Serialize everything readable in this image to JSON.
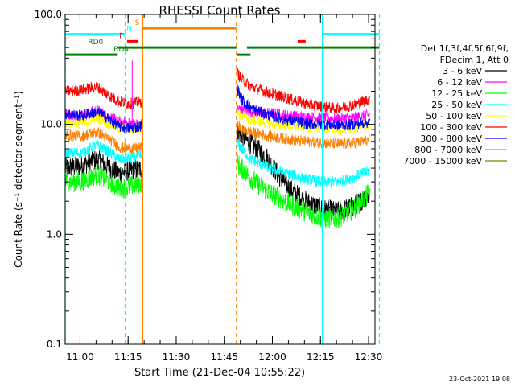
{
  "chart_data": {
    "type": "line",
    "title": "RHESSI Count Rates",
    "xlabel": "Start Time (21-Dec-04 10:55:22)",
    "ylabel": "Count Rate (s⁻¹ detector segment⁻¹)",
    "yscale": "log",
    "ylim": [
      0.1,
      100
    ],
    "xlim": [
      "10:55:22",
      "12:32:00"
    ],
    "x_ticks": [
      "11:00",
      "11:15",
      "11:30",
      "11:45",
      "12:00",
      "12:15",
      "12:30"
    ],
    "y_ticks": [
      "0.1",
      "1.0",
      "10.0",
      "100.0"
    ],
    "x_tick_minutes": [
      4.63,
      19.63,
      34.63,
      49.63,
      64.63,
      79.63,
      94.63
    ],
    "y_tick_values": [
      0.1,
      1,
      10,
      100
    ],
    "legend_header": [
      "Det 1f,3f,4f,5f,6f,9f,",
      "FDecim 1, Att 0"
    ],
    "legend_position": "right",
    "gaps_minutes": [
      [
        24.1,
        53.5
      ]
    ],
    "series": [
      {
        "name": "3 - 6 keV",
        "color": "#000000",
        "points": [
          [
            0,
            4.0
          ],
          [
            5,
            4.2
          ],
          [
            10,
            4.8
          ],
          [
            14,
            4.0
          ],
          [
            17,
            3.6
          ],
          [
            20,
            3.8
          ],
          [
            23,
            3.9
          ],
          [
            53.5,
            8.5
          ],
          [
            55,
            8.0
          ],
          [
            57,
            7.0
          ],
          [
            60,
            6.0
          ],
          [
            63,
            5.0
          ],
          [
            66,
            3.6
          ],
          [
            70,
            2.6
          ],
          [
            75,
            2.0
          ],
          [
            80,
            1.7
          ],
          [
            85,
            1.6
          ],
          [
            90,
            1.8
          ],
          [
            95,
            2.3
          ]
        ]
      },
      {
        "name": "6 - 12 keV",
        "color": "#ff00ff",
        "points": [
          [
            0,
            12.5
          ],
          [
            5,
            12.0
          ],
          [
            10,
            13.5
          ],
          [
            14,
            11.5
          ],
          [
            17,
            10.5
          ],
          [
            20,
            10.2
          ],
          [
            23,
            10.0
          ],
          [
            53.5,
            14.0
          ],
          [
            55,
            13.5
          ],
          [
            58,
            13.0
          ],
          [
            62,
            12.8
          ],
          [
            66,
            12.5
          ],
          [
            70,
            12.0
          ],
          [
            75,
            11.7
          ],
          [
            80,
            11.5
          ],
          [
            85,
            11.2
          ],
          [
            90,
            11.5
          ],
          [
            95,
            12.2
          ]
        ]
      },
      {
        "name": "12 - 25 keV",
        "color": "#00ff00",
        "points": [
          [
            0,
            3.0
          ],
          [
            5,
            3.0
          ],
          [
            10,
            3.5
          ],
          [
            14,
            3.0
          ],
          [
            17,
            2.6
          ],
          [
            20,
            2.7
          ],
          [
            23,
            2.9
          ],
          [
            53.5,
            4.5
          ],
          [
            55,
            4.0
          ],
          [
            58,
            3.2
          ],
          [
            62,
            2.6
          ],
          [
            66,
            2.2
          ],
          [
            70,
            1.9
          ],
          [
            75,
            1.6
          ],
          [
            80,
            1.4
          ],
          [
            85,
            1.4
          ],
          [
            90,
            1.7
          ],
          [
            95,
            2.4
          ]
        ]
      },
      {
        "name": "25 - 50 keV",
        "color": "#00ffff",
        "points": [
          [
            0,
            5.5
          ],
          [
            5,
            5.5
          ],
          [
            10,
            6.5
          ],
          [
            14,
            5.5
          ],
          [
            17,
            4.8
          ],
          [
            20,
            4.9
          ],
          [
            23,
            5.1
          ],
          [
            53.5,
            6.8
          ],
          [
            55,
            6.0
          ],
          [
            58,
            4.8
          ],
          [
            62,
            4.2
          ],
          [
            66,
            3.8
          ],
          [
            70,
            3.5
          ],
          [
            75,
            3.2
          ],
          [
            80,
            3.0
          ],
          [
            85,
            3.0
          ],
          [
            90,
            3.3
          ],
          [
            95,
            3.8
          ]
        ]
      },
      {
        "name": "50 - 100 keV",
        "color": "#ffff00",
        "points": [
          [
            0,
            10.5
          ],
          [
            5,
            10.2
          ],
          [
            10,
            11.5
          ],
          [
            14,
            10.0
          ],
          [
            17,
            9.2
          ],
          [
            20,
            9.0
          ],
          [
            23,
            9.2
          ],
          [
            53.5,
            13.0
          ],
          [
            55,
            12.0
          ],
          [
            58,
            11.0
          ],
          [
            62,
            10.5
          ],
          [
            66,
            10.0
          ],
          [
            70,
            9.8
          ],
          [
            75,
            9.5
          ],
          [
            80,
            9.2
          ],
          [
            85,
            9.0
          ],
          [
            90,
            9.3
          ],
          [
            95,
            9.8
          ]
        ]
      },
      {
        "name": "100 - 300 keV",
        "color": "#ff0000",
        "points": [
          [
            0,
            20.0
          ],
          [
            5,
            20.5
          ],
          [
            10,
            22.0
          ],
          [
            14,
            18.0
          ],
          [
            17,
            16.0
          ],
          [
            20,
            15.5
          ],
          [
            23,
            15.8
          ],
          [
            53.5,
            30.0
          ],
          [
            55,
            26.0
          ],
          [
            58,
            22.0
          ],
          [
            62,
            20.0
          ],
          [
            66,
            18.5
          ],
          [
            70,
            17.0
          ],
          [
            75,
            15.5
          ],
          [
            80,
            14.5
          ],
          [
            85,
            14.0
          ],
          [
            90,
            15.0
          ],
          [
            95,
            17.0
          ]
        ]
      },
      {
        "name": "300 - 800 keV",
        "color": "#0000ff",
        "points": [
          [
            0,
            12.5
          ],
          [
            5,
            12.0
          ],
          [
            10,
            13.0
          ],
          [
            14,
            11.0
          ],
          [
            17,
            9.5
          ],
          [
            20,
            9.2
          ],
          [
            23,
            9.5
          ],
          [
            53.5,
            22.0
          ],
          [
            55,
            17.0
          ],
          [
            58,
            14.0
          ],
          [
            62,
            12.5
          ],
          [
            66,
            11.5
          ],
          [
            70,
            10.8
          ],
          [
            75,
            10.2
          ],
          [
            80,
            10.0
          ],
          [
            85,
            9.8
          ],
          [
            90,
            10.0
          ],
          [
            95,
            10.5
          ]
        ]
      },
      {
        "name": "800 - 7000 keV",
        "color": "#ff8000",
        "points": [
          [
            0,
            8.0
          ],
          [
            5,
            7.8
          ],
          [
            10,
            8.5
          ],
          [
            14,
            7.2
          ],
          [
            17,
            6.2
          ],
          [
            20,
            6.0
          ],
          [
            23,
            6.1
          ],
          [
            53.5,
            10.0
          ],
          [
            55,
            9.0
          ],
          [
            58,
            8.5
          ],
          [
            62,
            8.0
          ],
          [
            66,
            7.6
          ],
          [
            70,
            7.3
          ],
          [
            75,
            7.0
          ],
          [
            80,
            6.8
          ],
          [
            85,
            6.6
          ],
          [
            90,
            6.8
          ],
          [
            95,
            7.2
          ]
        ]
      },
      {
        "name": "7000 - 15000 keV",
        "color": "#808000",
        "points": []
      }
    ],
    "vertical_lines": [
      {
        "minute": 0.0,
        "color": "#00ffff",
        "style": "solid"
      },
      {
        "minute": 18.7,
        "color": "#00ffff",
        "style": "dashed"
      },
      {
        "minute": 24.2,
        "color": "#ff8000",
        "style": "solid"
      },
      {
        "minute": 53.4,
        "color": "#ff8000",
        "style": "dashed"
      },
      {
        "minute": 80.2,
        "color": "#00ffff",
        "style": "solid"
      },
      {
        "minute": 98.0,
        "color": "#00ffff",
        "style": "dashed"
      }
    ],
    "flag_bars": [
      {
        "label": "N",
        "color": "#00ffff",
        "segments": [
          [
            0,
            18.7
          ],
          [
            80.2,
            98.0
          ]
        ],
        "level": 66,
        "label_at": 20.0
      },
      {
        "label": "S",
        "color": "#ff8000",
        "segments": [
          [
            24.2,
            53.4
          ]
        ],
        "level": 75,
        "label_at": 22.5
      },
      {
        "label": "F",
        "color": "#ff0000",
        "segments": [
          [
            19.3,
            22.8
          ],
          [
            72.5,
            75.0
          ]
        ],
        "level": 57,
        "label_at": 17.5
      },
      {
        "label": "RD0",
        "color": "#008000",
        "segments": [
          [
            16.4,
            53.4
          ],
          [
            56.7,
            98.0
          ]
        ],
        "level": 50,
        "label_at": 9.5
      },
      {
        "label": "RD4",
        "color": "#008000",
        "segments": [
          [
            0,
            16.4
          ],
          [
            53.6,
            57.8
          ]
        ],
        "level": 43,
        "label_at": 17.5
      }
    ],
    "grid": false
  },
  "footer": {
    "date": "23-Oct-2021 19:08"
  }
}
